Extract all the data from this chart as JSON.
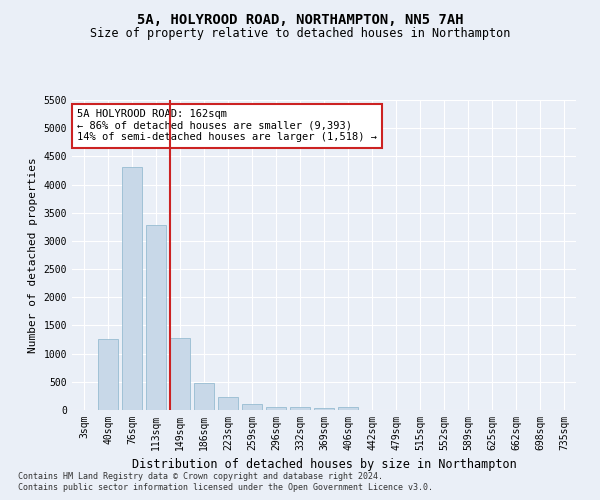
{
  "title": "5A, HOLYROOD ROAD, NORTHAMPTON, NN5 7AH",
  "subtitle": "Size of property relative to detached houses in Northampton",
  "xlabel": "Distribution of detached houses by size in Northampton",
  "ylabel": "Number of detached properties",
  "categories": [
    "3sqm",
    "40sqm",
    "76sqm",
    "113sqm",
    "149sqm",
    "186sqm",
    "223sqm",
    "259sqm",
    "296sqm",
    "332sqm",
    "369sqm",
    "406sqm",
    "442sqm",
    "479sqm",
    "515sqm",
    "552sqm",
    "589sqm",
    "625sqm",
    "662sqm",
    "698sqm",
    "735sqm"
  ],
  "values": [
    0,
    1260,
    4320,
    3280,
    1280,
    480,
    230,
    105,
    60,
    45,
    40,
    60,
    0,
    0,
    0,
    0,
    0,
    0,
    0,
    0,
    0
  ],
  "bar_color": "#c8d8e8",
  "bar_edge_color": "#8ab4cc",
  "vline_color": "#cc2222",
  "annotation_text": "5A HOLYROOD ROAD: 162sqm\n← 86% of detached houses are smaller (9,393)\n14% of semi-detached houses are larger (1,518) →",
  "annotation_box_color": "#ffffff",
  "annotation_box_edge_color": "#cc2222",
  "ylim_max": 5500,
  "yticks": [
    0,
    500,
    1000,
    1500,
    2000,
    2500,
    3000,
    3500,
    4000,
    4500,
    5000,
    5500
  ],
  "footer1": "Contains HM Land Registry data © Crown copyright and database right 2024.",
  "footer2": "Contains public sector information licensed under the Open Government Licence v3.0.",
  "bg_color": "#eaeff7",
  "title_fontsize": 10,
  "subtitle_fontsize": 8.5,
  "tick_fontsize": 7,
  "ylabel_fontsize": 8,
  "xlabel_fontsize": 8.5,
  "footer_fontsize": 6,
  "annot_fontsize": 7.5
}
